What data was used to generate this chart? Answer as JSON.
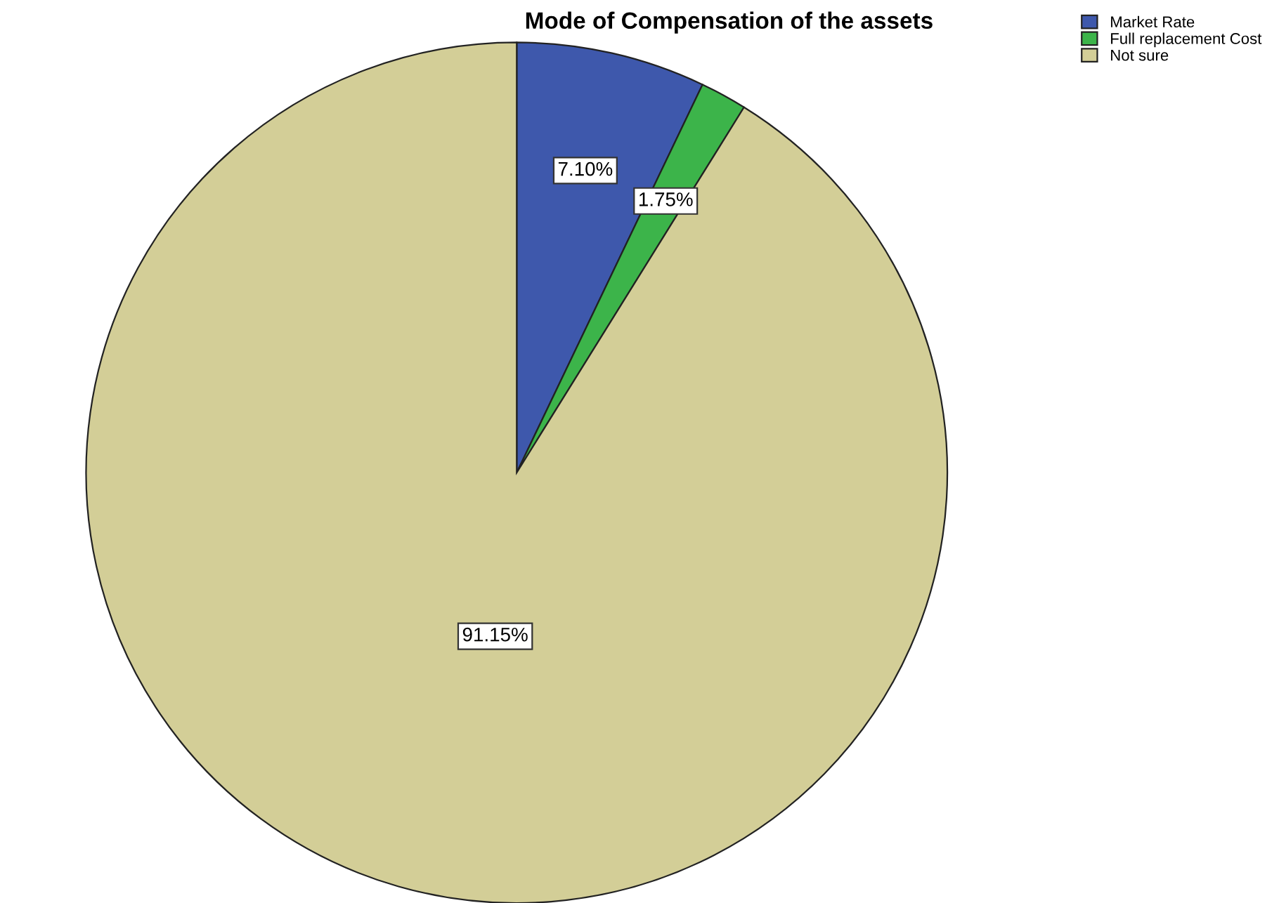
{
  "chart_data": {
    "type": "pie",
    "title": "Mode of Compensation of the assets",
    "categories": [
      "Market Rate",
      "Full replacement Cost",
      "Not sure"
    ],
    "values": [
      7.1,
      1.75,
      91.15
    ],
    "value_labels": [
      "7.10%",
      "1.75%",
      "91.15%"
    ],
    "colors": [
      "#3e58ac",
      "#3cb44a",
      "#d3ce97"
    ],
    "legend": "top right"
  }
}
